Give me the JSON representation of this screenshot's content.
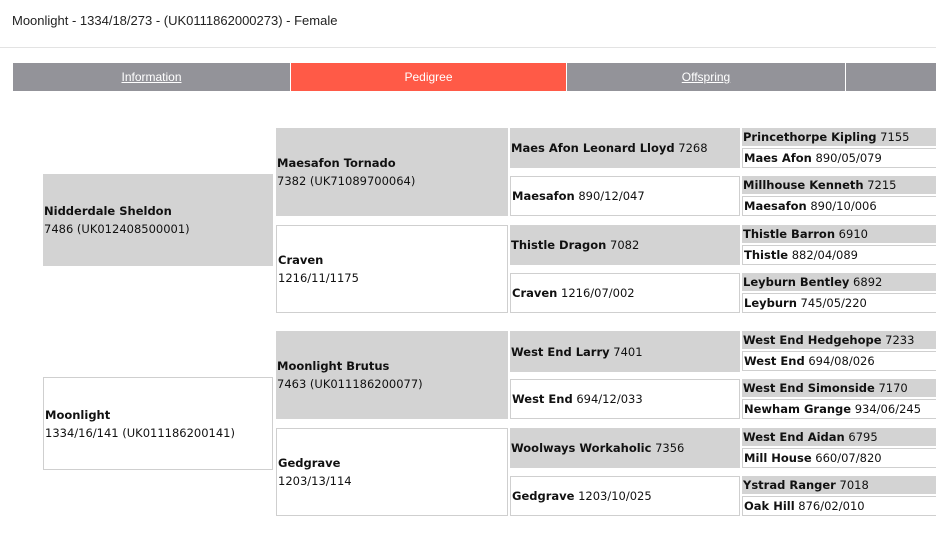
{
  "header": {
    "title": "Moonlight - 1334/18/273 - (UK0111862000273) - Female"
  },
  "tabs": [
    {
      "label": "Information",
      "active": false
    },
    {
      "label": "Pedigree",
      "active": true
    },
    {
      "label": "Offspring",
      "active": false
    },
    {
      "label": "",
      "active": false
    }
  ],
  "colors": {
    "tab": "#939399",
    "active_tab": "#ff5a47",
    "sire_cell": "#d3d3d3",
    "dam_cell": "#ffffff"
  },
  "pedigree": {
    "gen1": [
      {
        "name": "Nidderdale Sheldon",
        "reg": "7486 (UK012408500001)",
        "sex": "sire"
      },
      {
        "name": "Moonlight",
        "reg": "1334/16/141 (UK011186200141)",
        "sex": "dam"
      }
    ],
    "gen2": [
      {
        "name": "Maesafon Tornado",
        "reg": "7382 (UK71089700064)",
        "sex": "sire"
      },
      {
        "name": "Craven",
        "reg": "1216/11/1175",
        "sex": "dam"
      },
      {
        "name": "Moonlight Brutus",
        "reg": "7463 (UK011186200077)",
        "sex": "sire"
      },
      {
        "name": "Gedgrave",
        "reg": "1203/13/114",
        "sex": "dam"
      }
    ],
    "gen3": [
      {
        "name": "Maes Afon Leonard Lloyd",
        "reg": "7268",
        "sex": "sire"
      },
      {
        "name": "Maesafon",
        "reg": "890/12/047",
        "sex": "dam"
      },
      {
        "name": "Thistle Dragon",
        "reg": "7082",
        "sex": "sire"
      },
      {
        "name": "Craven",
        "reg": "1216/07/002",
        "sex": "dam"
      },
      {
        "name": "West End Larry",
        "reg": "7401",
        "sex": "sire"
      },
      {
        "name": "West End",
        "reg": "694/12/033",
        "sex": "dam"
      },
      {
        "name": "Woolways Workaholic",
        "reg": "7356",
        "sex": "sire"
      },
      {
        "name": "Gedgrave",
        "reg": "1203/10/025",
        "sex": "dam"
      }
    ],
    "gen4": [
      {
        "name": "Princethorpe Kipling",
        "reg": "7155",
        "sex": "sire"
      },
      {
        "name": "Maes Afon",
        "reg": "890/05/079",
        "sex": "dam"
      },
      {
        "name": "Millhouse Kenneth",
        "reg": "7215",
        "sex": "sire"
      },
      {
        "name": "Maesafon",
        "reg": "890/10/006",
        "sex": "dam"
      },
      {
        "name": "Thistle Barron",
        "reg": "6910",
        "sex": "sire"
      },
      {
        "name": "Thistle",
        "reg": "882/04/089",
        "sex": "dam"
      },
      {
        "name": "Leyburn Bentley",
        "reg": "6892",
        "sex": "sire"
      },
      {
        "name": "Leyburn",
        "reg": "745/05/220",
        "sex": "dam"
      },
      {
        "name": "West End Hedgehope",
        "reg": "7233",
        "sex": "sire"
      },
      {
        "name": "West End",
        "reg": "694/08/026",
        "sex": "dam"
      },
      {
        "name": "West End Simonside",
        "reg": "7170",
        "sex": "sire"
      },
      {
        "name": "Newham Grange",
        "reg": "934/06/245",
        "sex": "dam"
      },
      {
        "name": "West End Aidan",
        "reg": "6795",
        "sex": "sire"
      },
      {
        "name": "Mill House",
        "reg": "660/07/820",
        "sex": "dam"
      },
      {
        "name": "Ystrad Ranger",
        "reg": "7018",
        "sex": "sire"
      },
      {
        "name": "Oak Hill",
        "reg": "876/02/010",
        "sex": "dam"
      }
    ]
  }
}
